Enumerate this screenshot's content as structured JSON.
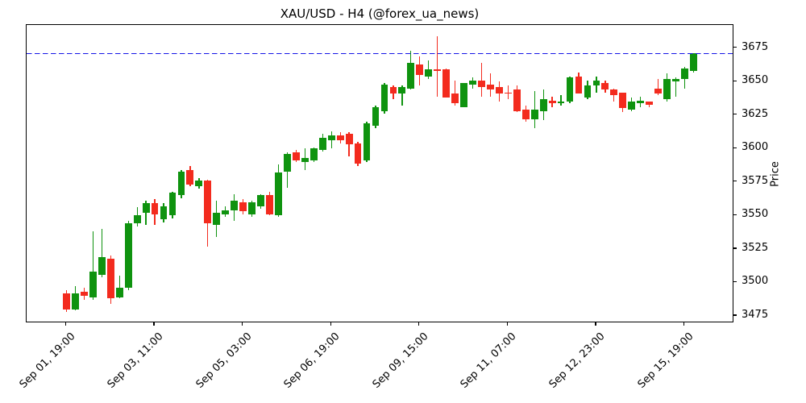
{
  "title": "XAU/USD - H4 (@forex_ua_news)",
  "chart_data": {
    "type": "candlestick",
    "symbol": "XAU/USD",
    "timeframe": "H4",
    "source_handle": "@forex_ua_news",
    "ylabel": "Price",
    "ylim": [
      3469.6,
      3692.3
    ],
    "y_ticks": [
      3475,
      3500,
      3525,
      3550,
      3575,
      3600,
      3625,
      3650,
      3675
    ],
    "x_ticks": [
      {
        "index": 0,
        "label": "Sep 01, 19:00"
      },
      {
        "index": 10,
        "label": "Sep 03, 11:00"
      },
      {
        "index": 20,
        "label": "Sep 05, 03:00"
      },
      {
        "index": 30,
        "label": "Sep 06, 19:00"
      },
      {
        "index": 40,
        "label": "Sep 09, 15:00"
      },
      {
        "index": 50,
        "label": "Sep 11, 07:00"
      },
      {
        "index": 60,
        "label": "Sep 12, 23:00"
      },
      {
        "index": 70,
        "label": "Sep 15, 19:00"
      }
    ],
    "hline_price": 3671,
    "grid": false,
    "legend": "none",
    "colors": {
      "up": "#0f930f",
      "down": "#f32b1e",
      "hline": "#1414e6",
      "axis": "#000000",
      "text": "#000000",
      "background": "#ffffff"
    },
    "candles_ohlc": [
      [
        3492,
        3494,
        3478,
        3480
      ],
      [
        3480,
        3497,
        3479,
        3492
      ],
      [
        3493,
        3496,
        3487,
        3490
      ],
      [
        3489,
        3538,
        3487,
        3508
      ],
      [
        3506,
        3540,
        3504,
        3519
      ],
      [
        3518,
        3520,
        3484,
        3488
      ],
      [
        3489,
        3505,
        3488,
        3496
      ],
      [
        3496,
        3546,
        3494,
        3544
      ],
      [
        3544,
        3556,
        3542,
        3550
      ],
      [
        3552,
        3561,
        3543,
        3559
      ],
      [
        3559,
        3562,
        3543,
        3551
      ],
      [
        3547,
        3559,
        3545,
        3557
      ],
      [
        3550,
        3568,
        3548,
        3567
      ],
      [
        3565,
        3584,
        3563,
        3583
      ],
      [
        3584,
        3587,
        3572,
        3573
      ],
      [
        3572,
        3578,
        3570,
        3576
      ],
      [
        3576,
        3577,
        3527,
        3544
      ],
      [
        3543,
        3561,
        3534,
        3552
      ],
      [
        3551,
        3557,
        3549,
        3554
      ],
      [
        3554,
        3566,
        3546,
        3561
      ],
      [
        3560,
        3562,
        3551,
        3553
      ],
      [
        3551,
        3561,
        3549,
        3560
      ],
      [
        3557,
        3566,
        3555,
        3565
      ],
      [
        3565,
        3568,
        3550,
        3551
      ],
      [
        3550,
        3588,
        3549,
        3582
      ],
      [
        3583,
        3597,
        3571,
        3596
      ],
      [
        3597,
        3599,
        3590,
        3591
      ],
      [
        3590,
        3600,
        3584,
        3593
      ],
      [
        3591,
        3601,
        3590,
        3600
      ],
      [
        3599,
        3611,
        3598,
        3608
      ],
      [
        3606,
        3613,
        3600,
        3610
      ],
      [
        3610,
        3612,
        3604,
        3606
      ],
      [
        3611,
        3612,
        3594,
        3603
      ],
      [
        3604,
        3605,
        3587,
        3589
      ],
      [
        3591,
        3620,
        3590,
        3619
      ],
      [
        3617,
        3632,
        3615,
        3631
      ],
      [
        3628,
        3649,
        3626,
        3648
      ],
      [
        3646,
        3647,
        3637,
        3641
      ],
      [
        3641,
        3647,
        3632,
        3646
      ],
      [
        3645,
        3673,
        3644,
        3664
      ],
      [
        3663,
        3669,
        3647,
        3655
      ],
      [
        3654,
        3666,
        3652,
        3659
      ],
      [
        3659,
        3684,
        3639,
        3658
      ],
      [
        3659,
        3660,
        3638,
        3638
      ],
      [
        3641,
        3651,
        3632,
        3634
      ],
      [
        3631,
        3649,
        3631,
        3649
      ],
      [
        3648,
        3653,
        3645,
        3651
      ],
      [
        3651,
        3664,
        3639,
        3646
      ],
      [
        3648,
        3656,
        3639,
        3644
      ],
      [
        3646,
        3650,
        3635,
        3641
      ],
      [
        3642,
        3647,
        3637,
        3641
      ],
      [
        3644,
        3647,
        3627,
        3628
      ],
      [
        3629,
        3632,
        3620,
        3622
      ],
      [
        3622,
        3643,
        3615,
        3629
      ],
      [
        3628,
        3644,
        3621,
        3637
      ],
      [
        3636,
        3639,
        3631,
        3634
      ],
      [
        3634,
        3640,
        3632,
        3635
      ],
      [
        3635,
        3654,
        3634,
        3653
      ],
      [
        3654,
        3657,
        3641,
        3641
      ],
      [
        3638,
        3651,
        3637,
        3647
      ],
      [
        3647,
        3654,
        3642,
        3651
      ],
      [
        3649,
        3651,
        3642,
        3644
      ],
      [
        3644,
        3645,
        3635,
        3640
      ],
      [
        3642,
        3642,
        3627,
        3630
      ],
      [
        3629,
        3638,
        3628,
        3635
      ],
      [
        3634,
        3639,
        3631,
        3636
      ],
      [
        3635,
        3635,
        3631,
        3633
      ],
      [
        3645,
        3652,
        3640,
        3641
      ],
      [
        3637,
        3656,
        3635,
        3652
      ],
      [
        3650,
        3653,
        3639,
        3652
      ],
      [
        3652,
        3661,
        3645,
        3660
      ],
      [
        3658,
        3671,
        3657,
        3671
      ]
    ]
  }
}
